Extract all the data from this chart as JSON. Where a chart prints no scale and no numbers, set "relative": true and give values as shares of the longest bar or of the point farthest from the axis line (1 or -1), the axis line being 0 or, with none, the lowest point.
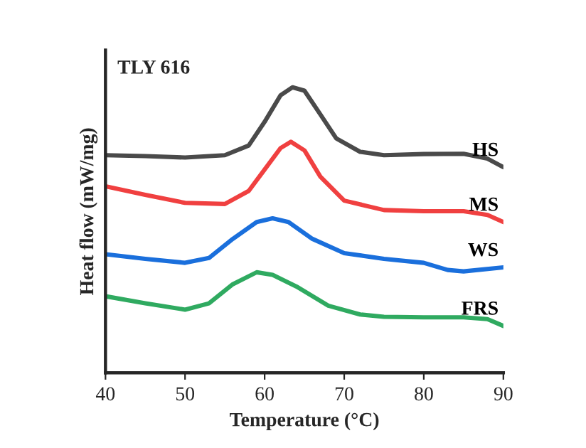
{
  "chart_data": {
    "type": "line",
    "relative": true,
    "xlabel": "Temperature (°C)",
    "ylabel": "Heat flow (mW/mg)",
    "annotations": [
      "TLY 616"
    ],
    "xlim": [
      40,
      90
    ],
    "xticks": [
      40,
      50,
      60,
      70,
      80,
      90
    ],
    "grid": false,
    "legend": false,
    "marker": "none",
    "line_style": "solid",
    "series": [
      {
        "name": "HS",
        "color": "#4a4a4a",
        "x": [
          40,
          45,
          50,
          55,
          58,
          60,
          62,
          63.5,
          65,
          67,
          69,
          72,
          75,
          80,
          85,
          88,
          90
        ],
        "values": [
          0.762,
          0.759,
          0.754,
          0.762,
          0.796,
          0.879,
          0.972,
          1.0,
          0.988,
          0.905,
          0.821,
          0.774,
          0.762,
          0.766,
          0.767,
          0.75,
          0.72
        ]
      },
      {
        "name": "MS",
        "color": "#f04040",
        "x": [
          40,
          45,
          50,
          55,
          58,
          60,
          62,
          63.3,
          65,
          67,
          70,
          75,
          80,
          85,
          88,
          90
        ],
        "values": [
          0.653,
          0.623,
          0.595,
          0.591,
          0.637,
          0.712,
          0.787,
          0.809,
          0.779,
          0.687,
          0.603,
          0.57,
          0.566,
          0.566,
          0.553,
          0.528
        ]
      },
      {
        "name": "WS",
        "color": "#1a6fdc",
        "x": [
          40,
          45,
          50,
          53,
          56,
          59,
          61,
          63,
          66,
          70,
          75,
          80,
          83,
          85,
          90
        ],
        "values": [
          0.415,
          0.399,
          0.385,
          0.402,
          0.469,
          0.528,
          0.541,
          0.528,
          0.469,
          0.419,
          0.399,
          0.385,
          0.36,
          0.355,
          0.369
        ]
      },
      {
        "name": "FRS",
        "color": "#2faa60",
        "x": [
          40,
          45,
          50,
          53,
          56,
          59,
          61,
          64,
          68,
          72,
          75,
          80,
          85,
          88,
          90
        ],
        "values": [
          0.268,
          0.243,
          0.221,
          0.243,
          0.31,
          0.352,
          0.343,
          0.302,
          0.235,
          0.204,
          0.196,
          0.194,
          0.194,
          0.188,
          0.164
        ]
      }
    ]
  }
}
